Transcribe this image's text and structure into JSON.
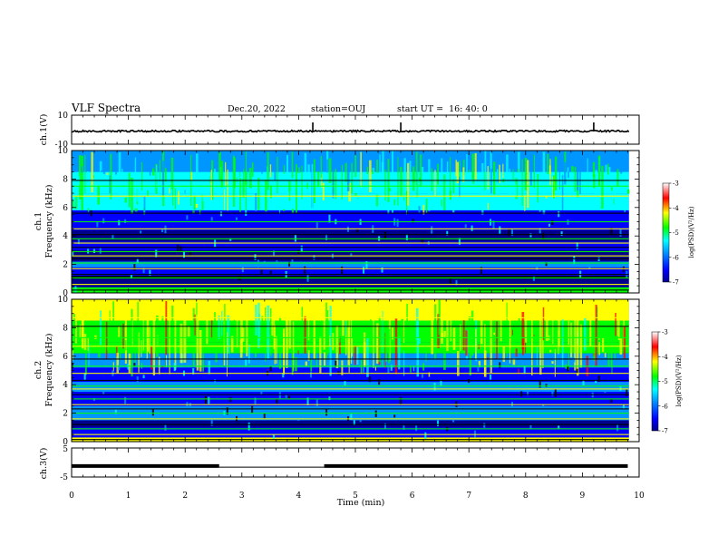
{
  "header": {
    "title": "VLF Spectra",
    "date": "Dec.20, 2022",
    "station": "station=OUJ",
    "start": "start UT =  16: 40: 0"
  },
  "chart_data": [
    {
      "type": "line",
      "name": "ch1-waveform",
      "ylabel": "ch.1(V)",
      "ylim": [
        -10,
        10
      ],
      "ytick_labels": [
        "10",
        "-10"
      ],
      "baseline": -1,
      "spikes_x": [
        4.25,
        5.8,
        9.2
      ]
    },
    {
      "type": "heatmap",
      "name": "ch1-spectrogram",
      "ylabel_lines": [
        "ch.1",
        "Frequency (kHz)"
      ],
      "ylim": [
        0,
        10
      ],
      "ytick_labels": [
        "0",
        "2",
        "4",
        "6",
        "8",
        "10"
      ],
      "colorbar": {
        "label": "log(PSD)(V²/Hz)",
        "ticks": [
          "-3",
          "-4",
          "-5",
          "-6",
          "-7"
        ],
        "range": [
          -7,
          -3
        ]
      }
    },
    {
      "type": "heatmap",
      "name": "ch2-spectrogram",
      "ylabel_lines": [
        "ch.2",
        "Frequency (kHz)"
      ],
      "ylim": [
        0,
        10
      ],
      "ytick_labels": [
        "0",
        "2",
        "4",
        "6",
        "8",
        "10"
      ],
      "colorbar": {
        "label": "log(PSD)(V²/Hz)",
        "ticks": [
          "-3",
          "-4",
          "-5",
          "-6",
          "-7"
        ],
        "range": [
          -7,
          -3
        ]
      }
    },
    {
      "type": "line",
      "name": "ch3-signal",
      "ylabel": "ch.3(V)",
      "ylim": [
        -5,
        5
      ],
      "ytick_labels": [
        "5",
        "-5"
      ],
      "segments": [
        {
          "x": [
            0,
            2.6
          ],
          "y": -1.2
        },
        {
          "x": [
            4.45,
            9.8
          ],
          "y": -1.2
        }
      ],
      "gap_level": -1.6
    }
  ],
  "x_axis": {
    "label": "Time (min)",
    "range": [
      0,
      10
    ],
    "tick_labels": [
      "0",
      "1",
      "2",
      "3",
      "4",
      "5",
      "6",
      "7",
      "8",
      "9",
      "10"
    ]
  },
  "colors": {
    "ink": "#000000",
    "colormap": [
      "#000000",
      "#00008c",
      "#0000ff",
      "#0096ff",
      "#00ffff",
      "#00ff00",
      "#ffff00",
      "#ff0000",
      "#8b0000"
    ]
  }
}
